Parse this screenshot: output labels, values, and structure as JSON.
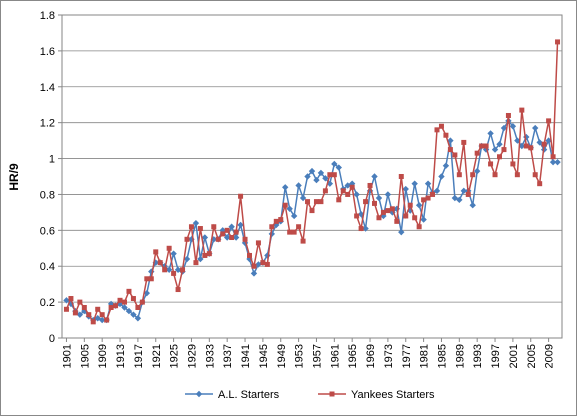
{
  "chart_data": {
    "type": "line",
    "ylabel": "HR/9",
    "x": [
      1901,
      1902,
      1903,
      1904,
      1905,
      1906,
      1907,
      1908,
      1909,
      1910,
      1911,
      1912,
      1913,
      1914,
      1915,
      1916,
      1917,
      1918,
      1919,
      1920,
      1921,
      1922,
      1923,
      1924,
      1925,
      1926,
      1927,
      1928,
      1929,
      1930,
      1931,
      1932,
      1933,
      1934,
      1935,
      1936,
      1937,
      1938,
      1939,
      1940,
      1941,
      1942,
      1943,
      1944,
      1945,
      1946,
      1947,
      1948,
      1949,
      1950,
      1951,
      1952,
      1953,
      1954,
      1955,
      1956,
      1957,
      1958,
      1959,
      1960,
      1961,
      1962,
      1963,
      1964,
      1965,
      1966,
      1967,
      1968,
      1969,
      1970,
      1971,
      1972,
      1973,
      1974,
      1975,
      1976,
      1977,
      1978,
      1979,
      1980,
      1981,
      1982,
      1983,
      1984,
      1985,
      1986,
      1987,
      1988,
      1989,
      1990,
      1991,
      1992,
      1993,
      1994,
      1995,
      1996,
      1997,
      1998,
      1999,
      2000,
      2001,
      2002,
      2003,
      2004,
      2005,
      2006,
      2007,
      2008,
      2009,
      2010,
      2011
    ],
    "xlim": [
      1900,
      2012
    ],
    "xticks": [
      1901,
      1905,
      1909,
      1913,
      1917,
      1921,
      1925,
      1929,
      1933,
      1937,
      1941,
      1945,
      1949,
      1953,
      1957,
      1961,
      1965,
      1969,
      1973,
      1977,
      1981,
      1985,
      1989,
      1993,
      1997,
      2001,
      2005,
      2009
    ],
    "ylim": [
      0,
      1.8
    ],
    "yticks": [
      0,
      0.2,
      0.4,
      0.6,
      0.8,
      1,
      1.2,
      1.4,
      1.6,
      1.8
    ],
    "grid": true,
    "legend": "bottom",
    "series": [
      {
        "name": "A.L. Starters",
        "color": "#4a7ebb",
        "marker": "diamond",
        "values": [
          0.21,
          0.19,
          0.15,
          0.13,
          0.15,
          0.12,
          0.1,
          0.11,
          0.1,
          0.1,
          0.19,
          0.18,
          0.19,
          0.17,
          0.15,
          0.13,
          0.11,
          0.2,
          0.25,
          0.37,
          0.42,
          0.42,
          0.4,
          0.38,
          0.47,
          0.38,
          0.37,
          0.44,
          0.55,
          0.64,
          0.44,
          0.56,
          0.47,
          0.55,
          0.55,
          0.6,
          0.56,
          0.62,
          0.56,
          0.63,
          0.53,
          0.44,
          0.36,
          0.41,
          0.42,
          0.46,
          0.58,
          0.63,
          0.65,
          0.84,
          0.72,
          0.68,
          0.85,
          0.78,
          0.9,
          0.93,
          0.88,
          0.92,
          0.89,
          0.86,
          0.97,
          0.95,
          0.83,
          0.85,
          0.86,
          0.8,
          0.69,
          0.61,
          0.82,
          0.9,
          0.78,
          0.68,
          0.8,
          0.7,
          0.72,
          0.59,
          0.83,
          0.71,
          0.86,
          0.74,
          0.66,
          0.86,
          0.81,
          0.82,
          0.9,
          0.96,
          1.1,
          0.78,
          0.77,
          0.82,
          0.82,
          0.74,
          0.93,
          1.07,
          1.05,
          1.14,
          1.05,
          1.08,
          1.17,
          1.21,
          1.18,
          1.1,
          1.07,
          1.12,
          1.06,
          1.17,
          1.09,
          1.05,
          1.1,
          0.98,
          0.98
        ]
      },
      {
        "name": "Yankees Starters",
        "color": "#be4b48",
        "marker": "square",
        "values": [
          0.16,
          0.22,
          0.14,
          0.2,
          0.17,
          0.13,
          0.09,
          0.16,
          0.13,
          0.1,
          0.17,
          0.18,
          0.21,
          0.2,
          0.26,
          0.22,
          0.17,
          0.2,
          0.33,
          0.33,
          0.48,
          0.42,
          0.38,
          0.5,
          0.36,
          0.27,
          0.38,
          0.55,
          0.62,
          0.42,
          0.61,
          0.46,
          0.47,
          0.62,
          0.55,
          0.58,
          0.6,
          0.56,
          0.59,
          0.79,
          0.55,
          0.46,
          0.4,
          0.53,
          0.42,
          0.41,
          0.62,
          0.65,
          0.66,
          0.74,
          0.59,
          0.59,
          0.62,
          0.54,
          0.76,
          0.71,
          0.76,
          0.76,
          0.82,
          0.91,
          0.91,
          0.77,
          0.82,
          0.8,
          0.84,
          0.68,
          0.61,
          0.76,
          0.85,
          0.75,
          0.67,
          0.7,
          0.71,
          0.72,
          0.65,
          0.9,
          0.68,
          0.74,
          0.67,
          0.62,
          0.77,
          0.78,
          0.8,
          1.16,
          1.18,
          1.13,
          1.05,
          1.02,
          0.91,
          1.09,
          0.8,
          0.91,
          1.03,
          1.07,
          1.07,
          0.97,
          0.91,
          1.01,
          1.05,
          1.24,
          0.97,
          0.91,
          1.27,
          1.07,
          1.06,
          0.91,
          0.86,
          1.08,
          1.21,
          1.01,
          1.65
        ]
      }
    ]
  }
}
